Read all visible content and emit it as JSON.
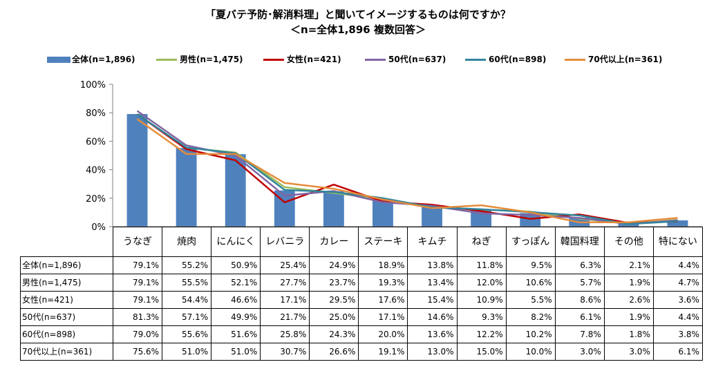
{
  "title_line1": "「夏バテ予防･解消料理」と聞いてイメージするものは何ですか？",
  "title_line2": "＜n=全体1,896  複数回答＞",
  "chart_data": {
    "type": "bar",
    "categories": [
      "うなぎ",
      "焼肉",
      "にんにく",
      "レバニラ",
      "カレー",
      "ステーキ",
      "キムチ",
      "ねぎ",
      "すっぽん",
      "韓国料理",
      "その他",
      "特にない"
    ],
    "ylim": [
      0,
      100
    ],
    "yticks": [
      "0%",
      "20%",
      "40%",
      "60%",
      "80%",
      "100%"
    ],
    "grid": false,
    "legend_position": "top",
    "series": [
      {
        "name": "全体(n=1,896)",
        "kind": "bar",
        "color": "#4F81BD",
        "values": [
          79.1,
          55.2,
          50.9,
          25.4,
          24.9,
          18.9,
          13.8,
          11.8,
          9.5,
          6.3,
          2.1,
          4.4
        ],
        "labels": [
          "79.1%",
          "55.2%",
          "50.9%",
          "25.4%",
          "24.9%",
          "18.9%",
          "13.8%",
          "11.8%",
          "9.5%",
          "6.3%",
          "2.1%",
          "4.4%"
        ]
      },
      {
        "name": "男性(n=1,475)",
        "kind": "line",
        "color": "#9BBB59",
        "values": [
          79.1,
          55.5,
          52.1,
          27.7,
          23.7,
          19.3,
          13.4,
          12.0,
          10.6,
          5.7,
          1.9,
          4.7
        ],
        "labels": [
          "79.1%",
          "55.5%",
          "52.1%",
          "27.7%",
          "23.7%",
          "19.3%",
          "13.4%",
          "12.0%",
          "10.6%",
          "5.7%",
          "1.9%",
          "4.7%"
        ]
      },
      {
        "name": "女性(n=421)",
        "kind": "line",
        "color": "#C00000",
        "values": [
          79.1,
          54.4,
          46.6,
          17.1,
          29.5,
          17.6,
          15.4,
          10.9,
          5.5,
          8.6,
          2.6,
          3.6
        ],
        "labels": [
          "79.1%",
          "54.4%",
          "46.6%",
          "17.1%",
          "29.5%",
          "17.6%",
          "15.4%",
          "10.9%",
          "5.5%",
          "8.6%",
          "2.6%",
          "3.6%"
        ]
      },
      {
        "name": "50代(n=637)",
        "kind": "line",
        "color": "#8064A2",
        "values": [
          81.3,
          57.1,
          49.9,
          21.7,
          25.0,
          17.1,
          14.6,
          9.3,
          8.2,
          6.1,
          1.9,
          4.4
        ],
        "labels": [
          "81.3%",
          "57.1%",
          "49.9%",
          "21.7%",
          "25.0%",
          "17.1%",
          "14.6%",
          "9.3%",
          "8.2%",
          "6.1%",
          "1.9%",
          "4.4%"
        ]
      },
      {
        "name": "60代(n=898)",
        "kind": "line",
        "color": "#31859C",
        "values": [
          79.0,
          55.6,
          51.6,
          25.8,
          24.3,
          20.0,
          13.6,
          12.2,
          10.2,
          7.8,
          1.8,
          3.8
        ],
        "labels": [
          "79.0%",
          "55.6%",
          "51.6%",
          "25.8%",
          "24.3%",
          "20.0%",
          "13.6%",
          "12.2%",
          "10.2%",
          "7.8%",
          "1.8%",
          "3.8%"
        ]
      },
      {
        "name": "70代以上(n=361)",
        "kind": "line",
        "color": "#E58C3A",
        "values": [
          75.6,
          51.0,
          51.0,
          30.7,
          26.6,
          19.1,
          13.0,
          15.0,
          10.0,
          3.0,
          3.0,
          6.1
        ],
        "labels": [
          "75.6%",
          "51.0%",
          "51.0%",
          "30.7%",
          "26.6%",
          "19.1%",
          "13.0%",
          "15.0%",
          "10.0%",
          "3.0%",
          "3.0%",
          "6.1%"
        ]
      }
    ]
  }
}
